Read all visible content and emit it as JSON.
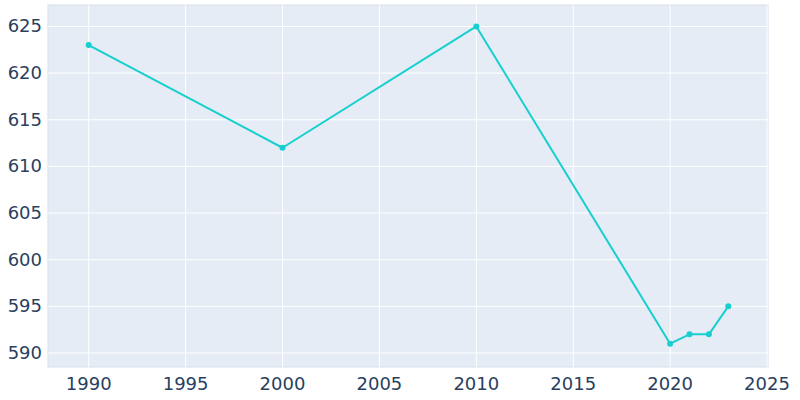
{
  "chart_data": {
    "type": "line",
    "x": [
      1990,
      2000,
      2010,
      2020,
      2021,
      2022,
      2023
    ],
    "values": [
      623,
      612,
      625,
      591,
      592,
      592,
      595
    ],
    "color": "#17cfcf",
    "marker": "circle",
    "xlim": [
      1987.9,
      2025.05
    ],
    "ylim": [
      588.5,
      627.3
    ],
    "xticks": [
      1990,
      1995,
      2000,
      2005,
      2010,
      2015,
      2020,
      2025
    ],
    "yticks": [
      590,
      595,
      600,
      605,
      610,
      615,
      620,
      625
    ],
    "grid": true
  }
}
